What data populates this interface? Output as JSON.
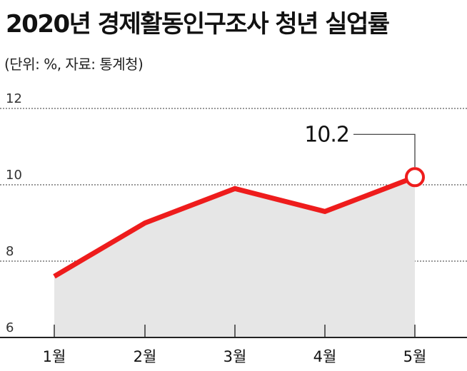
{
  "title": "2020년 경제활동인구조사 청년 실업률",
  "subtitle": "(단위: %, 자료: 통계청)",
  "chart_data": {
    "type": "area",
    "categories": [
      "1월",
      "2월",
      "3월",
      "4월",
      "5월"
    ],
    "values": [
      7.6,
      9.0,
      9.9,
      9.3,
      10.2
    ],
    "ylim": [
      6,
      12
    ],
    "yticks": [
      12,
      10,
      8,
      6
    ],
    "grid": true,
    "annotation": {
      "label": "10.2",
      "index": 4
    },
    "colors": {
      "line": "#ee1c1c",
      "fill": "#e6e6e6",
      "grid": "#333333"
    }
  }
}
